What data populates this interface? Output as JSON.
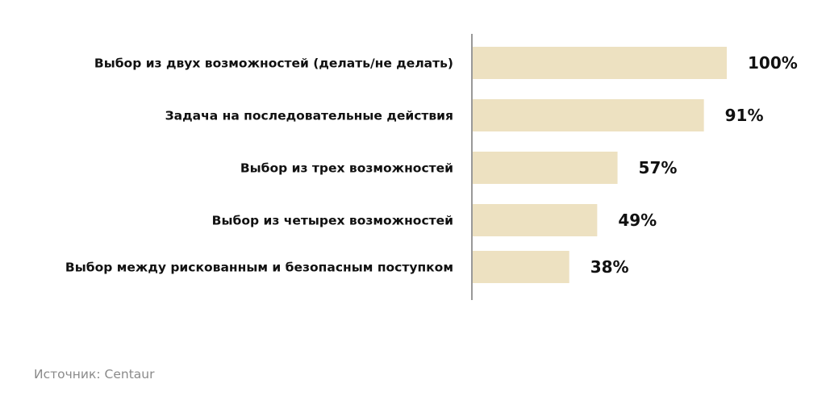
{
  "chart_data": {
    "type": "bar",
    "orientation": "horizontal",
    "categories": [
      "Выбор из двух возможностей (делать/не делать)",
      "Задача на последовательные действия",
      "Выбор из трех возможностей",
      "Выбор из четырех возможностей",
      "Выбор между рискованным и безопасным поступком"
    ],
    "values": [
      100,
      91,
      57,
      49,
      38
    ],
    "value_labels": [
      "100%",
      "91%",
      "57%",
      "49%",
      "38%"
    ],
    "unit": "%",
    "xlim": [
      0,
      100
    ],
    "grid": false,
    "legend": false,
    "bar_color": "#ede1c1",
    "axis_color": "#555555"
  },
  "source": "Источник: Centaur"
}
